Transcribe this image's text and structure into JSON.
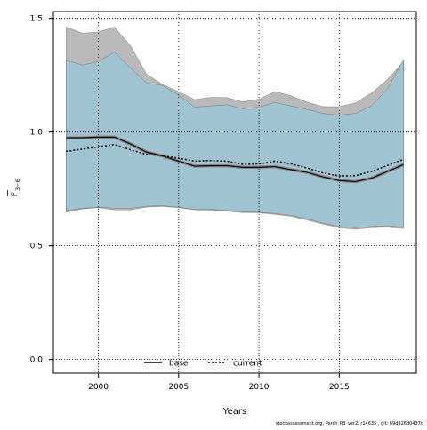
{
  "chart_data": {
    "type": "area",
    "xlabel": "Years",
    "ylabel_main": "F",
    "ylabel_sub": "3−6",
    "xlim": [
      1997.2,
      2019.8
    ],
    "ylim": [
      -0.06,
      1.53
    ],
    "grid": true,
    "legend_position": "bottom-center",
    "x_ticks": [
      2000,
      2005,
      2010,
      2015
    ],
    "x_tick_labels": [
      "2000",
      "2005",
      "2010",
      "2015"
    ],
    "y_ticks": [
      0,
      0.5,
      1,
      1.5
    ],
    "y_tick_labels": [
      "0.0",
      "0.5",
      "1.0",
      "1.5"
    ],
    "x": [
      1998,
      1999,
      2000,
      2001,
      2002,
      2003,
      2004,
      2005,
      2006,
      2007,
      2008,
      2009,
      2010,
      2011,
      2012,
      2013,
      2014,
      2015,
      2016,
      2017,
      2018,
      2019
    ],
    "series": [
      {
        "name": "base",
        "line_style": "solid",
        "line_color": "#000000",
        "band_color": "#808080",
        "values": [
          0.975,
          0.975,
          0.978,
          0.978,
          0.948,
          0.912,
          0.895,
          0.872,
          0.85,
          0.852,
          0.852,
          0.845,
          0.845,
          0.848,
          0.835,
          0.823,
          0.803,
          0.787,
          0.782,
          0.797,
          0.827,
          0.857
        ],
        "lower": [
          0.648,
          0.662,
          0.668,
          0.658,
          0.658,
          0.67,
          0.673,
          0.668,
          0.658,
          0.657,
          0.652,
          0.646,
          0.645,
          0.638,
          0.63,
          0.613,
          0.595,
          0.58,
          0.573,
          0.58,
          0.582,
          0.576
        ],
        "upper": [
          1.462,
          1.435,
          1.44,
          1.462,
          1.38,
          1.255,
          1.21,
          1.178,
          1.143,
          1.153,
          1.152,
          1.133,
          1.145,
          1.178,
          1.16,
          1.132,
          1.112,
          1.112,
          1.128,
          1.172,
          1.232,
          1.31
        ]
      },
      {
        "name": "current",
        "line_style": "dotted",
        "line_color": "#000000",
        "band_color": "#87ceeb",
        "values": [
          0.915,
          0.925,
          0.935,
          0.945,
          0.922,
          0.902,
          0.895,
          0.885,
          0.872,
          0.875,
          0.872,
          0.858,
          0.86,
          0.872,
          0.86,
          0.842,
          0.82,
          0.807,
          0.808,
          0.827,
          0.853,
          0.88
        ],
        "lower": [
          0.655,
          0.665,
          0.67,
          0.665,
          0.665,
          0.674,
          0.676,
          0.67,
          0.66,
          0.66,
          0.656,
          0.65,
          0.648,
          0.642,
          0.634,
          0.618,
          0.6,
          0.585,
          0.58,
          0.585,
          0.588,
          0.582
        ],
        "upper": [
          1.315,
          1.295,
          1.31,
          1.352,
          1.282,
          1.215,
          1.205,
          1.162,
          1.11,
          1.115,
          1.12,
          1.103,
          1.11,
          1.13,
          1.115,
          1.1,
          1.082,
          1.075,
          1.082,
          1.115,
          1.19,
          1.32
        ]
      }
    ],
    "footer_text": "stockassessment.org, Perch_PB_ver2, r14635 , git: 69d926d0437d"
  }
}
